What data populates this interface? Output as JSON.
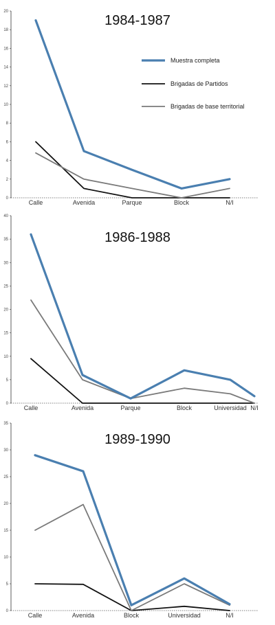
{
  "colors": {
    "Muestra completa": "#4a7fb0",
    "Brigadas de Partidos": "#111111",
    "Brigadas de base territorial": "#7a7a7a"
  },
  "chart_data": [
    {
      "type": "line",
      "title": "1984-1987",
      "categories": [
        "Calle",
        "Avenida",
        "Parque",
        "Block",
        "N/I"
      ],
      "ylim": [
        0,
        20
      ],
      "yticks": [
        0,
        2,
        4,
        6,
        8,
        10,
        12,
        14,
        16,
        18,
        20
      ],
      "legend_position": "top-right",
      "series": [
        {
          "name": "Muestra completa",
          "values": [
            19,
            5,
            3,
            1,
            2
          ]
        },
        {
          "name": "Brigadas de Partidos",
          "values": [
            6,
            1,
            0,
            0,
            0
          ]
        },
        {
          "name": "Brigadas de base territorial",
          "values": [
            4.8,
            2,
            1,
            0,
            1
          ]
        }
      ]
    },
    {
      "type": "line",
      "title": "1986-1988",
      "categories": [
        "Calle",
        "Avenida",
        "Parque",
        "Block",
        "Universidad",
        "N/I"
      ],
      "ylim": [
        0,
        40
      ],
      "yticks": [
        0,
        5,
        10,
        15,
        20,
        25,
        30,
        35,
        40
      ],
      "series": [
        {
          "name": "Muestra completa",
          "values": [
            36,
            6,
            1,
            7,
            5,
            1.5
          ]
        },
        {
          "name": "Brigadas de Partidos",
          "values": [
            9.5,
            0,
            0,
            0,
            0,
            0
          ]
        },
        {
          "name": "Brigadas de base territorial",
          "values": [
            22,
            5,
            1,
            3.2,
            2,
            0
          ]
        }
      ]
    },
    {
      "type": "line",
      "title": "1989-1990",
      "categories": [
        "Calle",
        "Avenida",
        "Block",
        "Universidad",
        "N/I"
      ],
      "ylim": [
        0,
        35
      ],
      "yticks": [
        0,
        5,
        10,
        15,
        20,
        25,
        30,
        35
      ],
      "series": [
        {
          "name": "Muestra completa",
          "values": [
            29,
            26,
            1,
            6,
            1.2
          ]
        },
        {
          "name": "Brigadas de Partidos",
          "values": [
            5,
            4.9,
            0,
            0.8,
            0
          ]
        },
        {
          "name": "Brigadas de base territorial",
          "values": [
            15,
            19.8,
            0,
            5,
            1
          ]
        }
      ]
    }
  ]
}
